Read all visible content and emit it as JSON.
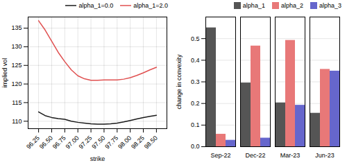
{
  "chart_data": [
    {
      "type": "line",
      "xlabel": "strike",
      "ylabel": "implied vol",
      "x": [
        96.25,
        96.375,
        96.5,
        96.625,
        96.75,
        96.875,
        97.0,
        97.125,
        97.25,
        97.375,
        97.5,
        97.625,
        97.75,
        97.875,
        98.0,
        98.125,
        98.25,
        98.375,
        98.5
      ],
      "series": [
        {
          "name": "alpha_1=0.0",
          "color": "#1a1a1a",
          "values": [
            112.5,
            111.5,
            111.0,
            110.7,
            110.5,
            110.0,
            109.7,
            109.5,
            109.3,
            109.2,
            109.2,
            109.3,
            109.5,
            109.8,
            110.2,
            110.6,
            111.0,
            111.3,
            111.6
          ]
        },
        {
          "name": "alpha_1=2.0",
          "color": "#e05050",
          "values": [
            137.0,
            134.5,
            131.5,
            128.5,
            126.0,
            123.8,
            122.2,
            121.4,
            121.0,
            121.0,
            121.1,
            121.1,
            121.1,
            121.3,
            121.7,
            122.3,
            123.0,
            123.8,
            124.5
          ]
        }
      ],
      "xlim": [
        96.05,
        98.7
      ],
      "xticks": [
        {
          "value": 96.25,
          "label": "96.25"
        },
        {
          "value": 96.5,
          "label": "96.50"
        },
        {
          "value": 96.75,
          "label": "96.75"
        },
        {
          "value": 97.0,
          "label": "97.00"
        },
        {
          "value": 97.25,
          "label": "97.25"
        },
        {
          "value": 97.5,
          "label": "97.50"
        },
        {
          "value": 97.75,
          "label": "97.75"
        },
        {
          "value": 98.0,
          "label": "98.00"
        },
        {
          "value": 98.25,
          "label": "98.25"
        },
        {
          "value": 98.5,
          "label": "98.50"
        }
      ],
      "ylim": [
        108,
        138
      ],
      "yticks": [
        110,
        115,
        120,
        125,
        130,
        135
      ],
      "grid": true,
      "legend": "upper right"
    },
    {
      "type": "bar",
      "ylabel": "change in convexity",
      "categories": [
        "Sep-22",
        "Dec-22",
        "Mar-23",
        "Jun-23"
      ],
      "series": [
        {
          "name": "alpha_1",
          "color": "#555555",
          "values": [
            0.55,
            0.295,
            0.203,
            0.155
          ]
        },
        {
          "name": "alpha_2",
          "color": "#e87878",
          "values": [
            0.058,
            0.466,
            0.492,
            0.358
          ]
        },
        {
          "name": "alpha_3",
          "color": "#6666cc",
          "values": [
            0.03,
            0.04,
            0.192,
            0.35
          ]
        }
      ],
      "ylim": [
        0.0,
        0.6
      ],
      "yticks": [
        {
          "value": 0.0,
          "label": "0.0"
        },
        0.1,
        0.2,
        0.3,
        0.4,
        0.5
      ],
      "grid": "y",
      "legend": "upper right"
    }
  ]
}
